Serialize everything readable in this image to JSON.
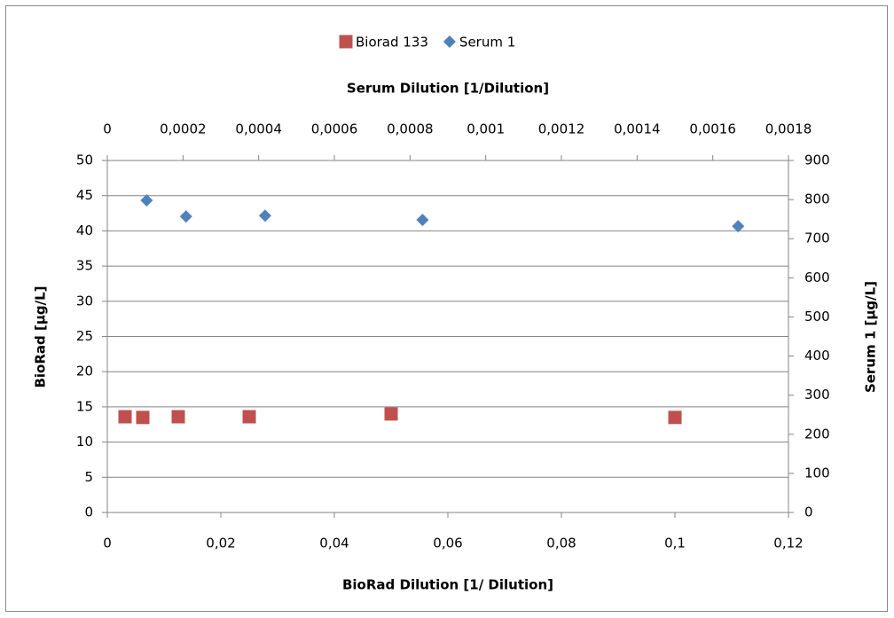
{
  "chart_data": {
    "type": "scatter",
    "xlabel": "BioRad Dilution [1/ Dilution]",
    "x2label": "Serum Dilution [1/Dilution]",
    "ylabel": "BioRad [µg/L]",
    "y2label": "Serum 1 [µg/L]",
    "xlim": [
      0,
      0.12
    ],
    "xticks": [
      0,
      {
        "value": 0.02,
        "label": "0,02"
      },
      {
        "value": 0.04,
        "label": "0,04"
      },
      {
        "value": 0.06,
        "label": "0,06"
      },
      {
        "value": 0.08,
        "label": "0,08"
      },
      {
        "value": 0.1,
        "label": "0,1"
      },
      {
        "value": 0.12,
        "label": "0,12"
      }
    ],
    "x2lim": [
      0,
      0.0018
    ],
    "x2ticks": [
      0,
      {
        "value": 0.0002,
        "label": "0,0002"
      },
      {
        "value": 0.0004,
        "label": "0,0004"
      },
      {
        "value": 0.0006,
        "label": "0,0006"
      },
      {
        "value": 0.0008,
        "label": "0,0008"
      },
      {
        "value": 0.001,
        "label": "0,001"
      },
      {
        "value": 0.0012,
        "label": "0,0012"
      },
      {
        "value": 0.0014,
        "label": "0,0014"
      },
      {
        "value": 0.0016,
        "label": "0,0016"
      },
      {
        "value": 0.0018,
        "label": "0,0018"
      }
    ],
    "ylim": [
      0,
      50
    ],
    "yticks": [
      0,
      5,
      10,
      15,
      20,
      25,
      30,
      35,
      40,
      45,
      50
    ],
    "y2lim": [
      0,
      900
    ],
    "y2ticks": [
      0,
      100,
      200,
      300,
      400,
      500,
      600,
      700,
      800,
      900
    ],
    "grid": true,
    "legend": "top",
    "series": [
      {
        "name": "Biorad 133",
        "color": "#c0504d",
        "marker": "square",
        "x": [
          0.003125,
          0.00625,
          0.0125,
          0.025,
          0.05,
          0.1
        ],
        "values": [
          13.6,
          13.5,
          13.6,
          13.6,
          14.0,
          13.5
        ]
      },
      {
        "name": "Serum 1",
        "color": "#4f81bd",
        "marker": "diamond",
        "axis": "y2",
        "xaxis": "x2",
        "x": [
          0.000104,
          0.000208,
          0.000417,
          0.000833,
          0.001667
        ],
        "values": [
          798,
          757,
          759,
          748,
          732
        ]
      }
    ]
  }
}
